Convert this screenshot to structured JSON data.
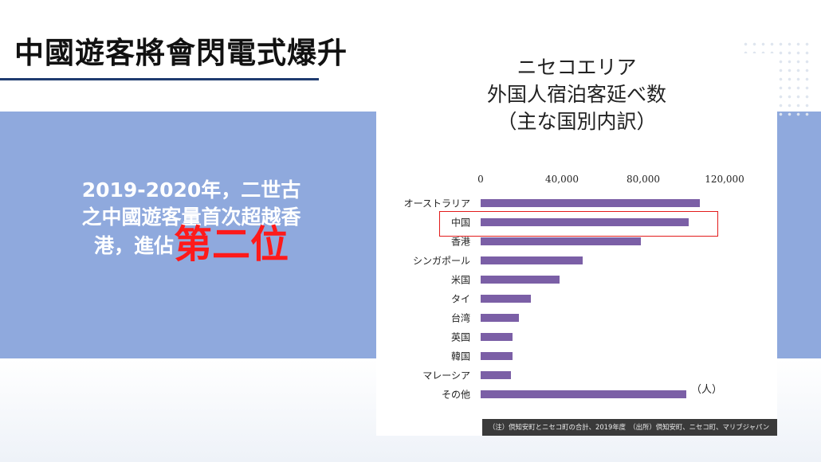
{
  "slide": {
    "title": "中國遊客將會閃電式爆升",
    "callout_lines": [
      "2019-2020年，二世古",
      "之中國遊客量首次超越香"
    ],
    "callout_last_prefix": "港，進佔",
    "callout_highlight": "第二位"
  },
  "chart_data": {
    "type": "bar",
    "orientation": "horizontal",
    "title_lines": [
      "ニセコエリア",
      "外国人宿泊客延べ数",
      "（主な国別内訳）"
    ],
    "categories": [
      "オーストラリア",
      "中国",
      "香港",
      "シンガポール",
      "米国",
      "タイ",
      "台湾",
      "英国",
      "韓国",
      "マレーシア",
      "その他"
    ],
    "values": [
      108000,
      102500,
      79000,
      50000,
      39000,
      24800,
      19000,
      15500,
      15500,
      15000,
      101000
    ],
    "xlim": [
      0,
      120000
    ],
    "xticks": [
      "0",
      "40,000",
      "80,000",
      "120,000"
    ],
    "xtick_values": [
      0,
      40000,
      80000,
      120000
    ],
    "highlighted_category": "中国",
    "unit_label": "（人）",
    "bar_color": "#7b5fa6",
    "highlight_color": "#e21b1b",
    "note": "（注）倶知安町とニセコ町の合計、2019年度　（出所）倶知安町、ニセコ町、マリブジャパン"
  },
  "colors": {
    "band": "#8fa9dd",
    "title_rule": "#1f3b70",
    "callout_text": "#ffffff",
    "callout_highlight": "#ff1a1a"
  }
}
